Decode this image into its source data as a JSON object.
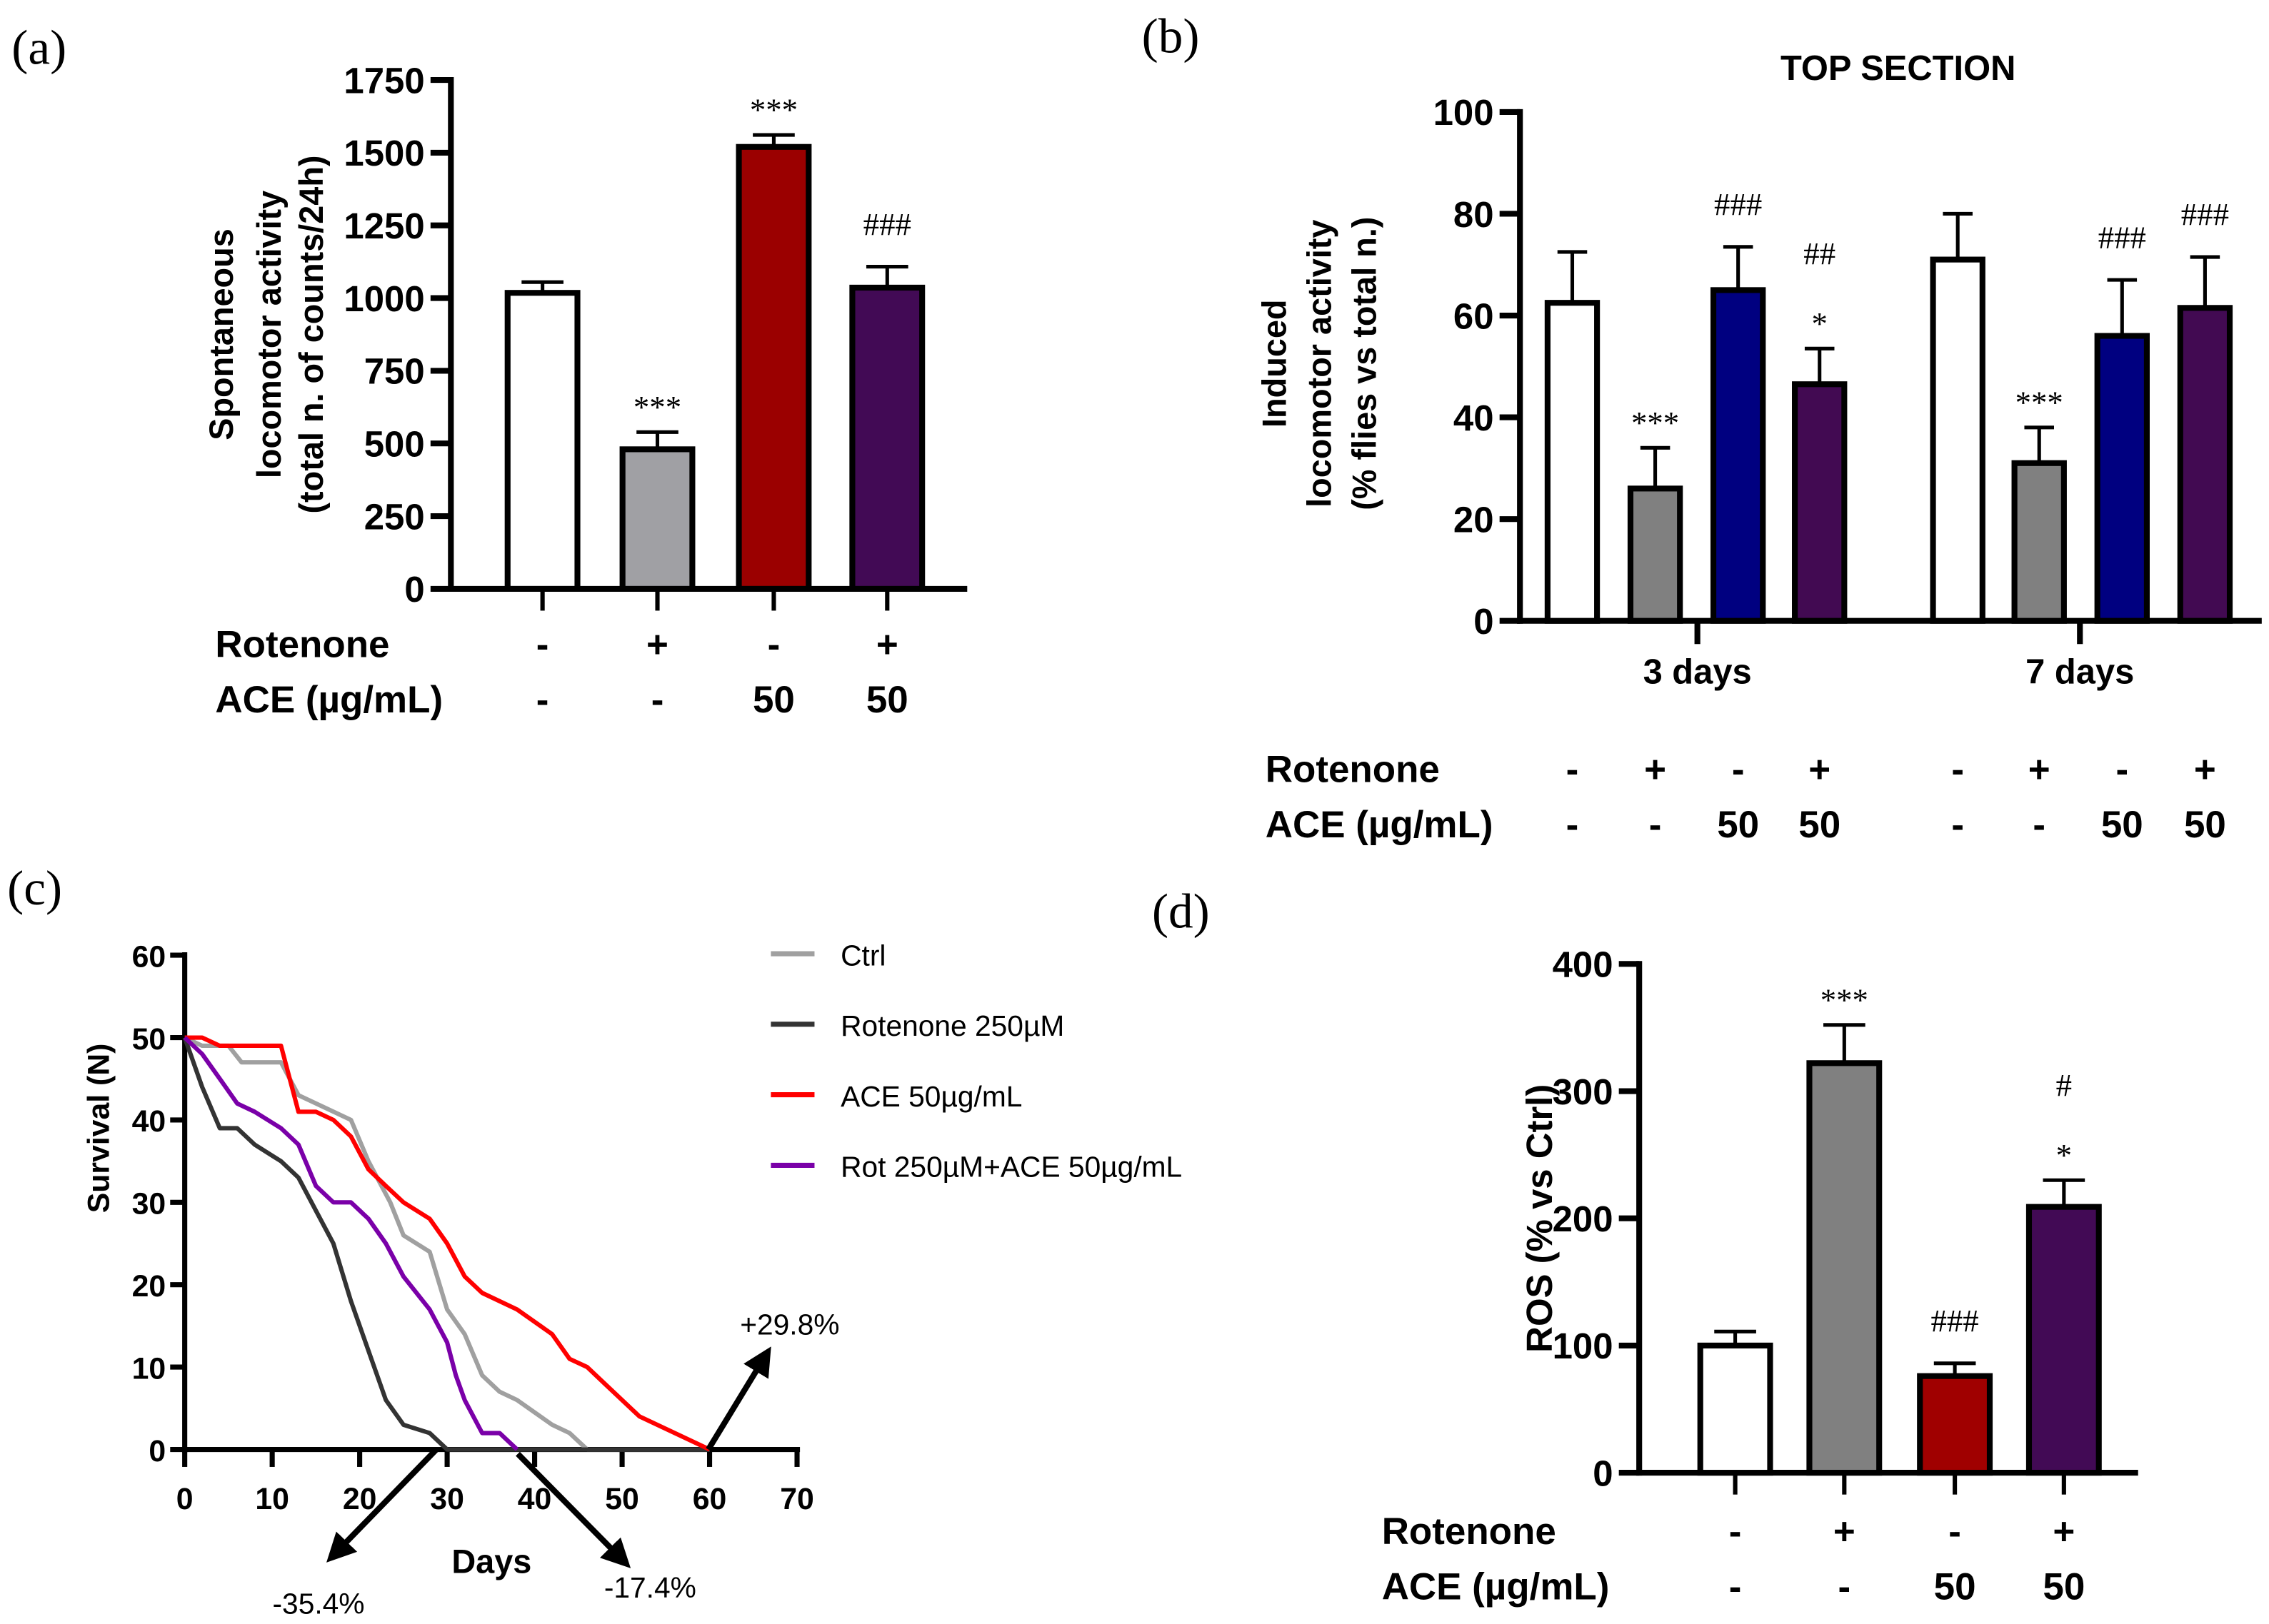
{
  "chart_data": [
    {
      "panel": "(a)",
      "type": "bar",
      "title": "",
      "ylabel": [
        "Spontaneous",
        "locomotor activity",
        "(total n. of counts/24h)"
      ],
      "ylim": [
        0,
        1750
      ],
      "yticks": [
        "0",
        "250",
        "500",
        "750",
        "1000",
        "1250",
        "1500",
        "1750"
      ],
      "grid": false,
      "groups": [
        {
          "label": "",
          "bars": [
            {
              "value": 1018,
              "error": 37,
              "color": "#ffffff",
              "annotation": []
            },
            {
              "value": 480,
              "error": 59,
              "color": "#a0a0a4",
              "annotation": [
                "***"
              ]
            },
            {
              "value": 1520,
              "error": 41,
              "color": "#9b0000",
              "annotation": [
                "***"
              ]
            },
            {
              "value": 1036,
              "error": 72,
              "color": "#420a55",
              "annotation": [
                "###"
              ]
            }
          ]
        }
      ],
      "conditions": [
        {
          "label": "Rotenone",
          "values": [
            "-",
            "+",
            "-",
            "+"
          ]
        },
        {
          "label": "ACE (µg/mL)",
          "values": [
            "-",
            "-",
            "50",
            "50"
          ]
        }
      ]
    },
    {
      "panel": "(b)",
      "type": "bar",
      "title": "TOP SECTION",
      "ylabel": [
        "Induced",
        "locomotor activity",
        "(% flies vs total n.)"
      ],
      "ylim": [
        0,
        100
      ],
      "yticks": [
        "0",
        "20",
        "40",
        "60",
        "80",
        "100"
      ],
      "grid": false,
      "groups": [
        {
          "label": "3 days",
          "bars": [
            {
              "value": 62.5,
              "error": 10,
              "color": "#ffffff",
              "annotation": []
            },
            {
              "value": 26,
              "error": 8,
              "color": "#808080",
              "annotation": [
                "***"
              ]
            },
            {
              "value": 65,
              "error": 8.5,
              "color": "#000080",
              "annotation": [
                "###"
              ]
            },
            {
              "value": 46.5,
              "error": 7,
              "color": "#420a52",
              "annotation": [
                "##",
                "*"
              ]
            }
          ]
        },
        {
          "label": "7 days",
          "bars": [
            {
              "value": 71,
              "error": 9,
              "color": "#ffffff",
              "annotation": []
            },
            {
              "value": 31,
              "error": 7,
              "color": "#808080",
              "annotation": [
                "***"
              ]
            },
            {
              "value": 56,
              "error": 11,
              "color": "#000080",
              "annotation": [
                "###"
              ]
            },
            {
              "value": 61.5,
              "error": 10,
              "color": "#420a52",
              "annotation": [
                "###"
              ]
            }
          ]
        }
      ],
      "conditions": [
        {
          "label": "Rotenone",
          "values": [
            "-",
            "+",
            "-",
            "+",
            "-",
            "+",
            "-",
            "+"
          ]
        },
        {
          "label": "ACE (µg/mL)",
          "values": [
            "-",
            "-",
            "50",
            "50",
            "-",
            "-",
            "50",
            "50"
          ]
        }
      ]
    },
    {
      "panel": "(c)",
      "type": "line",
      "title": "",
      "xlabel": "Days",
      "ylabel": "Survival (N)",
      "xlim": [
        0,
        70
      ],
      "ylim": [
        0,
        60
      ],
      "xticks": [
        "0",
        "10",
        "20",
        "30",
        "40",
        "50",
        "60",
        "70"
      ],
      "yticks": [
        "0",
        "10",
        "20",
        "30",
        "40",
        "50",
        "60"
      ],
      "grid": false,
      "legend_position": "top-right",
      "series": [
        {
          "name": "Ctrl",
          "color": "#a0a0a0",
          "points": [
            [
              0,
              50
            ],
            [
              2,
              49
            ],
            [
              5,
              49
            ],
            [
              6.5,
              47
            ],
            [
              11,
              47
            ],
            [
              13,
              43
            ],
            [
              16,
              41.5
            ],
            [
              19,
              40
            ],
            [
              21,
              35
            ],
            [
              23.5,
              30
            ],
            [
              25,
              26
            ],
            [
              28,
              24
            ],
            [
              30,
              17
            ],
            [
              32,
              14
            ],
            [
              34,
              9
            ],
            [
              36,
              7
            ],
            [
              38,
              6
            ],
            [
              40,
              4.5
            ],
            [
              42,
              3
            ],
            [
              44,
              2
            ],
            [
              46,
              0
            ],
            [
              60,
              0
            ]
          ]
        },
        {
          "name": "Rotenone 250µM",
          "color": "#333333",
          "points": [
            [
              0,
              50
            ],
            [
              2,
              44
            ],
            [
              4,
              39
            ],
            [
              6,
              39
            ],
            [
              8,
              37
            ],
            [
              11,
              35
            ],
            [
              13,
              33
            ],
            [
              15,
              29
            ],
            [
              17,
              25
            ],
            [
              19,
              18
            ],
            [
              21,
              12
            ],
            [
              23,
              6
            ],
            [
              25,
              3
            ],
            [
              28,
              2
            ],
            [
              30,
              0
            ],
            [
              60,
              0
            ]
          ]
        },
        {
          "name": "ACE 50µg/mL",
          "color": "#ff0000",
          "points": [
            [
              0,
              50
            ],
            [
              2,
              50
            ],
            [
              4,
              49
            ],
            [
              11,
              49
            ],
            [
              13,
              41
            ],
            [
              15,
              41
            ],
            [
              17,
              40
            ],
            [
              19,
              38
            ],
            [
              21,
              34
            ],
            [
              23,
              32
            ],
            [
              25,
              30
            ],
            [
              28,
              28
            ],
            [
              30,
              25
            ],
            [
              32,
              21
            ],
            [
              34,
              19
            ],
            [
              38,
              17
            ],
            [
              40,
              15.5
            ],
            [
              42,
              14
            ],
            [
              44,
              11
            ],
            [
              46,
              10
            ],
            [
              48,
              8
            ],
            [
              52,
              4
            ],
            [
              60,
              0
            ]
          ]
        },
        {
          "name": "Rot 250µM+ACE 50µg/mL",
          "color": "#7a00a8",
          "points": [
            [
              0,
              50
            ],
            [
              2,
              48
            ],
            [
              4,
              45
            ],
            [
              6,
              42
            ],
            [
              8,
              41
            ],
            [
              11,
              39
            ],
            [
              13,
              37
            ],
            [
              15,
              32
            ],
            [
              17,
              30
            ],
            [
              19,
              30
            ],
            [
              21,
              28
            ],
            [
              23,
              25
            ],
            [
              25,
              21
            ],
            [
              28,
              17
            ],
            [
              30,
              13
            ],
            [
              31,
              9
            ],
            [
              32,
              6
            ],
            [
              34,
              2
            ],
            [
              36,
              2
            ],
            [
              38,
              0
            ]
          ]
        }
      ],
      "annotations": [
        "+29.8%",
        "-35.4%",
        "-17.4%"
      ]
    },
    {
      "panel": "(d)",
      "type": "bar",
      "title": "",
      "ylabel": [
        "ROS (% vs Ctrl)"
      ],
      "ylim": [
        0,
        400
      ],
      "yticks": [
        "0",
        "100",
        "200",
        "300",
        "400"
      ],
      "grid": false,
      "groups": [
        {
          "label": "",
          "bars": [
            {
              "value": 100,
              "error": 11,
              "color": "#ffffff",
              "annotation": []
            },
            {
              "value": 322,
              "error": 30,
              "color": "#808080",
              "annotation": [
                "***"
              ]
            },
            {
              "value": 76,
              "error": 10,
              "color": "#a00000",
              "annotation": [
                "###"
              ]
            },
            {
              "value": 209,
              "error": 21,
              "color": "#420a55",
              "annotation": [
                "#",
                "*"
              ]
            }
          ]
        }
      ],
      "conditions": [
        {
          "label": "Rotenone",
          "values": [
            "-",
            "+",
            "-",
            "+"
          ]
        },
        {
          "label": "ACE (µg/mL)",
          "values": [
            "-",
            "-",
            "50",
            "50"
          ]
        }
      ]
    }
  ]
}
